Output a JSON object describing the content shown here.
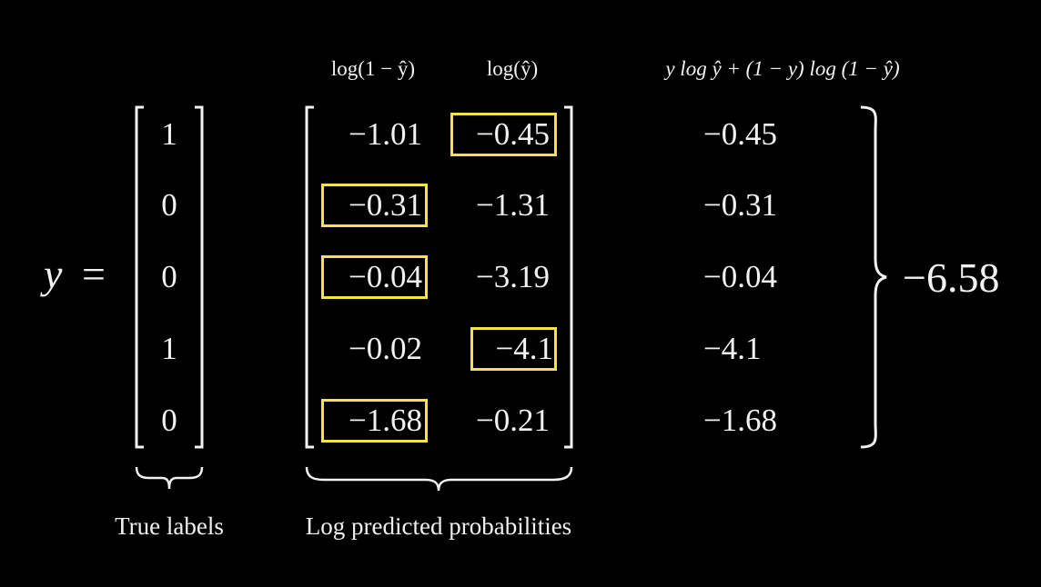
{
  "lhs_variable": "y",
  "equals": "=",
  "headers": {
    "log_one_minus": "log(1 − ŷ)",
    "log_yhat": "log(ŷ)",
    "formula": "y log ŷ + (1 − y) log (1 − ŷ)"
  },
  "true_labels": [
    "1",
    "0",
    "0",
    "1",
    "0"
  ],
  "log_one_minus_values": [
    "−1.01",
    "−0.31",
    "−0.04",
    "−0.02",
    "−1.68"
  ],
  "log_yhat_values": [
    "−0.45",
    "−1.31",
    "−3.19",
    "−4.1",
    "−0.21"
  ],
  "term_values": [
    "−0.45",
    "−0.31",
    "−0.04",
    "−4.1",
    "−1.68"
  ],
  "highlighted": [
    {
      "row": 1,
      "column": "log_yhat"
    },
    {
      "row": 2,
      "column": "log_one_minus"
    },
    {
      "row": 3,
      "column": "log_one_minus"
    },
    {
      "row": 4,
      "column": "log_yhat"
    },
    {
      "row": 5,
      "column": "log_one_minus"
    }
  ],
  "total": "−6.58",
  "captions": {
    "true_labels": "True labels",
    "log_predicted": "Log predicted probabilities"
  },
  "colors": {
    "background": "#000000",
    "text": "#f2f2f2",
    "highlight": "#f5e347"
  }
}
